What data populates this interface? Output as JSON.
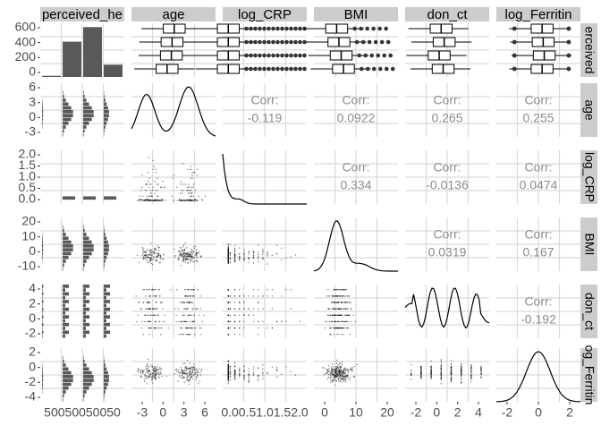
{
  "chart_data": {
    "type": "pairs-plot",
    "variables": [
      "perceived_health",
      "age",
      "log_CRP",
      "BMI",
      "don_ct",
      "log_Ferritin"
    ],
    "column_strip_labels": [
      "perceived_he",
      "age",
      "log_CRP",
      "BMI",
      "don_ct",
      "log_Ferritin"
    ],
    "row_strip_labels": [
      "erceived",
      "age",
      "log_CRP",
      "BMI",
      "don_ct",
      "og_Ferritin"
    ],
    "correlations": [
      {
        "row": "age",
        "col": "log_CRP",
        "label": "Corr:",
        "value": "-0.119"
      },
      {
        "row": "age",
        "col": "BMI",
        "label": "Corr:",
        "value": "0.0922"
      },
      {
        "row": "age",
        "col": "don_ct",
        "label": "Corr:",
        "value": "0.265"
      },
      {
        "row": "age",
        "col": "log_Ferritin",
        "label": "Corr:",
        "value": "0.255"
      },
      {
        "row": "log_CRP",
        "col": "BMI",
        "label": "Corr:",
        "value": "0.334"
      },
      {
        "row": "log_CRP",
        "col": "don_ct",
        "label": "Corr:",
        "value": "-0.0136"
      },
      {
        "row": "log_CRP",
        "col": "log_Ferritin",
        "label": "Corr:",
        "value": "0.0474"
      },
      {
        "row": "BMI",
        "col": "don_ct",
        "label": "Corr:",
        "value": "0.0319"
      },
      {
        "row": "BMI",
        "col": "log_Ferritin",
        "label": "Corr:",
        "value": "0.167"
      },
      {
        "row": "don_ct",
        "col": "log_Ferritin",
        "label": "Corr:",
        "value": "-0.192"
      }
    ],
    "perceived_bar_counts": [
      15,
      460,
      650,
      160
    ],
    "y_axis_ticks": {
      "perceived_health": [
        "600",
        "400",
        "200",
        "0"
      ],
      "age": [
        "6",
        "3",
        "0",
        "-3"
      ],
      "log_CRP": [
        "2.0",
        "1.5",
        "1.0",
        "0.5",
        "0.0"
      ],
      "BMI": [
        "20",
        "10",
        "0",
        "-10"
      ],
      "don_ct": [
        "4",
        "2",
        "0",
        "-2"
      ],
      "log_Ferritin": [
        "2",
        "0",
        "-2",
        "-4"
      ]
    },
    "x_axis_ticks": {
      "perceived_health": "50050050050",
      "age": [
        "-3",
        "0",
        "3",
        "6"
      ],
      "log_CRP": "0.00.51.01.52.0",
      "BMI": [
        "0",
        "10",
        "20"
      ],
      "don_ct": [
        "-2",
        "0",
        "2",
        "4"
      ],
      "log_Ferritin": [
        "-2",
        "0",
        "2"
      ]
    },
    "grid": true,
    "colors": {
      "panel_bg": "#ffffff",
      "strip_bg": "#cccccc",
      "grid": "#d9d9d9",
      "bar": "#595959",
      "corr_text": "#8c8c8c",
      "ink": "#000000"
    }
  }
}
